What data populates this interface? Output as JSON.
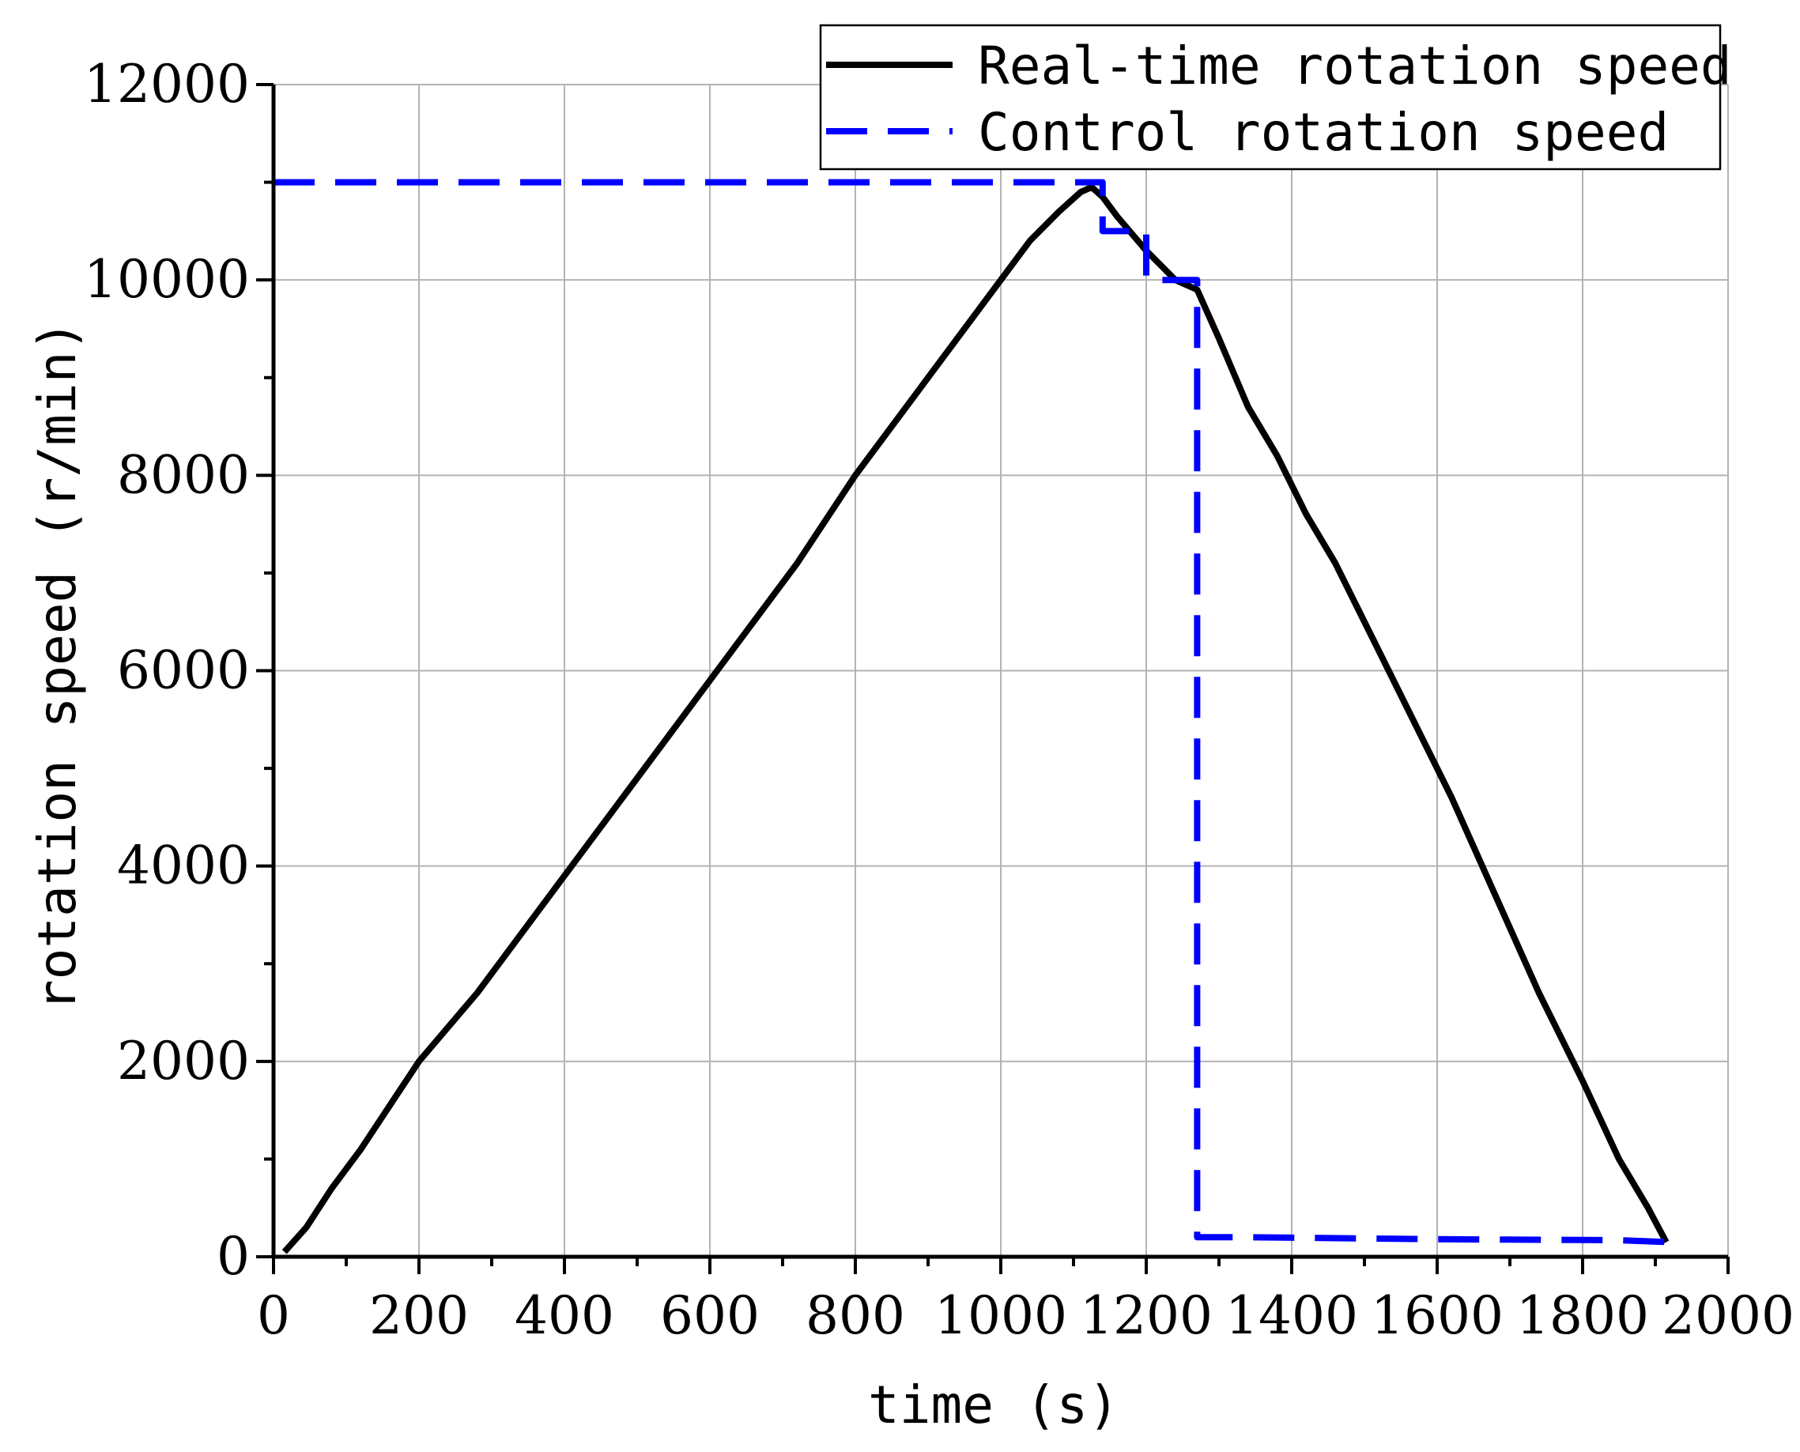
{
  "chart_data": {
    "type": "line",
    "xlabel": "time (s)",
    "ylabel": "rotation speed (r/min)",
    "xlim": [
      0,
      2000
    ],
    "ylim": [
      0,
      12000
    ],
    "x_ticks": [
      "0",
      "200",
      "400",
      "600",
      "800",
      "1000",
      "1200",
      "1400",
      "1600",
      "1800",
      "2000"
    ],
    "y_ticks": [
      "0",
      "2000",
      "4000",
      "6000",
      "8000",
      "10000",
      "12000"
    ],
    "grid": true,
    "legend_position": "top-right",
    "series": [
      {
        "name": "Real-time rotation speed",
        "style": "solid",
        "color": "#000000",
        "x": [
          15,
          45,
          80,
          120,
          200,
          280,
          330,
          400,
          480,
          560,
          640,
          720,
          800,
          880,
          920,
          960,
          1000,
          1040,
          1080,
          1110,
          1125,
          1140,
          1160,
          1200,
          1240,
          1270,
          1300,
          1340,
          1380,
          1420,
          1460,
          1500,
          1560,
          1620,
          1680,
          1740,
          1800,
          1850,
          1890,
          1915
        ],
        "y": [
          50,
          300,
          700,
          1100,
          2000,
          2700,
          3200,
          3900,
          4700,
          5500,
          6300,
          7100,
          8000,
          8800,
          9200,
          9600,
          10000,
          10400,
          10700,
          10900,
          10950,
          10850,
          10650,
          10300,
          10000,
          9900,
          9400,
          8700,
          8200,
          7600,
          7100,
          6500,
          5600,
          4700,
          3700,
          2700,
          1800,
          1000,
          500,
          150
        ]
      },
      {
        "name": "Control rotation speed",
        "style": "dashed",
        "color": "#0000ff",
        "x": [
          0,
          1140,
          1140,
          1200,
          1200,
          1270,
          1270,
          1340,
          1600,
          1850,
          1920
        ],
        "y": [
          11000,
          11000,
          10500,
          10500,
          10000,
          10000,
          200,
          200,
          180,
          170,
          150
        ]
      }
    ]
  }
}
